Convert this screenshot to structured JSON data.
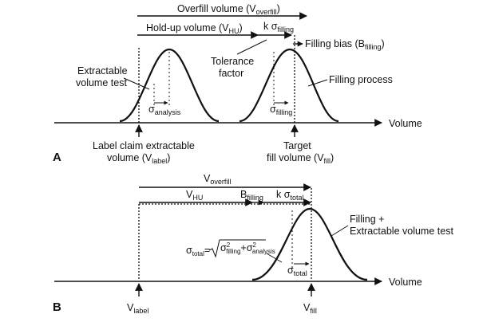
{
  "panel_a": {
    "label": "A",
    "overfill_main": "Overfill volume (V",
    "overfill_sub": "overfill",
    "overfill_close": ")",
    "holdup_main": "Hold-up volume (V",
    "holdup_sub": "HU",
    "holdup_close": ")",
    "k_sigma_main": "k σ",
    "k_sigma_sub": "filling",
    "filling_bias_main": "Filling bias (B",
    "filling_bias_sub": "filling",
    "filling_bias_close": ")",
    "tolerance_line1": "Tolerance",
    "tolerance_line2": "factor",
    "extractable_line1": "Extractable",
    "extractable_line2": "volume test",
    "filling_process": "Filling process",
    "sigma_analysis_main": "σ",
    "sigma_analysis_sub": "analysis",
    "sigma_filling_main": "σ",
    "sigma_filling_sub": "filling",
    "volume_axis": "Volume",
    "label_claim_line1": "Label claim extractable",
    "label_claim_line2_main": "volume (V",
    "label_claim_line2_sub": "label",
    "label_claim_line2_close": ")",
    "target_line1": "Target",
    "target_line2_main": "fill volume (V",
    "target_line2_sub": "fill",
    "target_line2_close": ")"
  },
  "panel_b": {
    "label": "B",
    "overfill_main": "V",
    "overfill_sub": "overfill",
    "vhu_main": "V",
    "vhu_sub": "HU",
    "bfilling_main": "B",
    "bfilling_sub": "filling",
    "k_sigma_main": "k σ",
    "k_sigma_sub": "total",
    "combined_line1": "Filling +",
    "combined_line2": "Extractable volume test",
    "formula_lhs_main": "σ",
    "formula_lhs_sub": "total",
    "formula_eq": "=",
    "formula_t1_main": "σ",
    "formula_t1_sup": "2",
    "formula_t1_sub": "filling",
    "formula_plus": "+σ",
    "formula_t2_sup": "2",
    "formula_t2_sub": "analysis",
    "sigma_total_main": "σ",
    "sigma_total_sub": "total",
    "volume_axis": "Volume",
    "vlabel_main": "V",
    "vlabel_sub": "label",
    "vfill_main": "V",
    "vfill_sub": "fill"
  }
}
